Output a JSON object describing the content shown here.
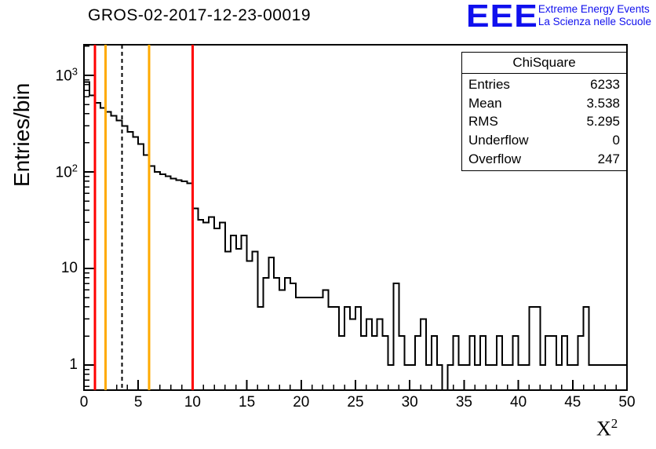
{
  "header": {
    "title": "GROS-02-2017-12-23-00019"
  },
  "logo": {
    "acronym": "EEE",
    "line1": "Extreme Energy Events",
    "line2": "La Scienza nelle Scuole",
    "color": "#1010ee"
  },
  "axes": {
    "y_label": "Entries/bin",
    "x_label_base": "X",
    "x_label_exp": "2"
  },
  "stats": {
    "title": "ChiSquare",
    "rows": [
      {
        "label": "Entries",
        "value": "6233"
      },
      {
        "label": "Mean",
        "value": "3.538"
      },
      {
        "label": "RMS",
        "value": "5.295"
      },
      {
        "label": "Underflow",
        "value": "0"
      },
      {
        "label": "Overflow",
        "value": "247"
      }
    ]
  },
  "chart_data": {
    "type": "histogram-step",
    "title": "GROS-02-2017-12-23-00019",
    "xlabel": "X^2",
    "ylabel": "Entries/bin",
    "xlim": [
      0,
      50
    ],
    "ylim": [
      0.55,
      2075
    ],
    "ylog": true,
    "grid": false,
    "bin_start": 0,
    "bin_width": 0.5,
    "values": [
      850,
      620,
      520,
      460,
      420,
      380,
      340,
      300,
      260,
      230,
      195,
      150,
      115,
      100,
      95,
      90,
      85,
      82,
      80,
      76,
      42,
      32,
      30,
      34,
      26,
      30,
      15,
      22,
      16,
      22,
      12,
      15,
      4,
      8,
      13,
      8,
      6,
      8,
      7,
      5,
      5,
      5,
      5,
      5,
      6,
      4,
      4,
      2,
      4,
      3,
      4,
      2,
      3,
      2,
      3,
      2,
      1,
      7,
      2,
      1,
      1,
      2,
      3,
      1,
      2,
      1,
      0,
      1,
      2,
      1,
      1,
      2,
      1,
      2,
      1,
      1,
      2,
      1,
      1,
      2,
      1,
      1,
      4,
      4,
      1,
      2,
      2,
      1,
      2,
      1,
      1,
      2,
      4,
      1,
      1,
      1,
      1,
      1,
      1,
      1
    ],
    "xticks": [
      0,
      5,
      10,
      15,
      20,
      25,
      30,
      35,
      40,
      45,
      50
    ],
    "yticks": [
      {
        "v": 1,
        "base": "1",
        "exp": ""
      },
      {
        "v": 10,
        "base": "10",
        "exp": ""
      },
      {
        "v": 100,
        "base": "10",
        "exp": "2"
      },
      {
        "v": 1000,
        "base": "10",
        "exp": "3"
      }
    ],
    "vlines": [
      {
        "x": 1,
        "color": "#ff0000",
        "dash": false
      },
      {
        "x": 2,
        "color": "#ffaa00",
        "dash": false
      },
      {
        "x": 3.5,
        "color": "#000000",
        "dash": true
      },
      {
        "x": 6,
        "color": "#ffaa00",
        "dash": false
      },
      {
        "x": 10,
        "color": "#ff0000",
        "dash": false
      }
    ],
    "line_color": "#000000"
  }
}
